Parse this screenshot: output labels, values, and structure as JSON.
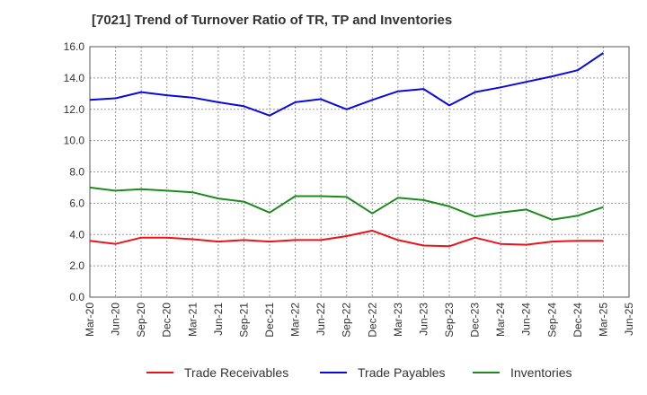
{
  "chart_data": {
    "type": "line",
    "title": "[7021]  Trend of Turnover Ratio of TR, TP and Inventories",
    "xlabel": "",
    "ylabel": "",
    "ylim": [
      0,
      16
    ],
    "yticks": [
      "0.0",
      "2.0",
      "4.0",
      "6.0",
      "8.0",
      "10.0",
      "12.0",
      "14.0",
      "16.0"
    ],
    "categories": [
      "Mar-20",
      "Jun-20",
      "Sep-20",
      "Dec-20",
      "Mar-21",
      "Jun-21",
      "Sep-21",
      "Dec-21",
      "Mar-22",
      "Jun-22",
      "Sep-22",
      "Dec-22",
      "Mar-23",
      "Jun-23",
      "Sep-23",
      "Dec-23",
      "Mar-24",
      "Jun-24",
      "Sep-24",
      "Dec-24",
      "Mar-25",
      "Jun-25"
    ],
    "grid": true,
    "legend_position": "bottom",
    "series": [
      {
        "name": "Trade Receivables",
        "color": "#e8151b",
        "values": [
          3.6,
          3.4,
          3.8,
          3.8,
          3.7,
          3.55,
          3.65,
          3.55,
          3.65,
          3.65,
          3.9,
          4.25,
          3.65,
          3.3,
          3.25,
          3.8,
          3.4,
          3.35,
          3.55,
          3.6,
          3.6,
          null
        ]
      },
      {
        "name": "Trade Payables",
        "color": "#0a0adc",
        "values": [
          12.6,
          12.7,
          13.1,
          12.9,
          12.75,
          12.45,
          12.2,
          11.6,
          12.45,
          12.65,
          12.0,
          12.6,
          13.15,
          13.3,
          12.25,
          13.1,
          13.4,
          13.75,
          14.1,
          14.5,
          15.6,
          null
        ]
      },
      {
        "name": "Inventories",
        "color": "#1e8a1e",
        "values": [
          7.0,
          6.8,
          6.9,
          6.8,
          6.7,
          6.3,
          6.1,
          5.4,
          6.45,
          6.45,
          6.4,
          5.35,
          6.35,
          6.2,
          5.8,
          5.15,
          5.4,
          5.6,
          4.95,
          5.2,
          5.75,
          null
        ]
      }
    ]
  }
}
